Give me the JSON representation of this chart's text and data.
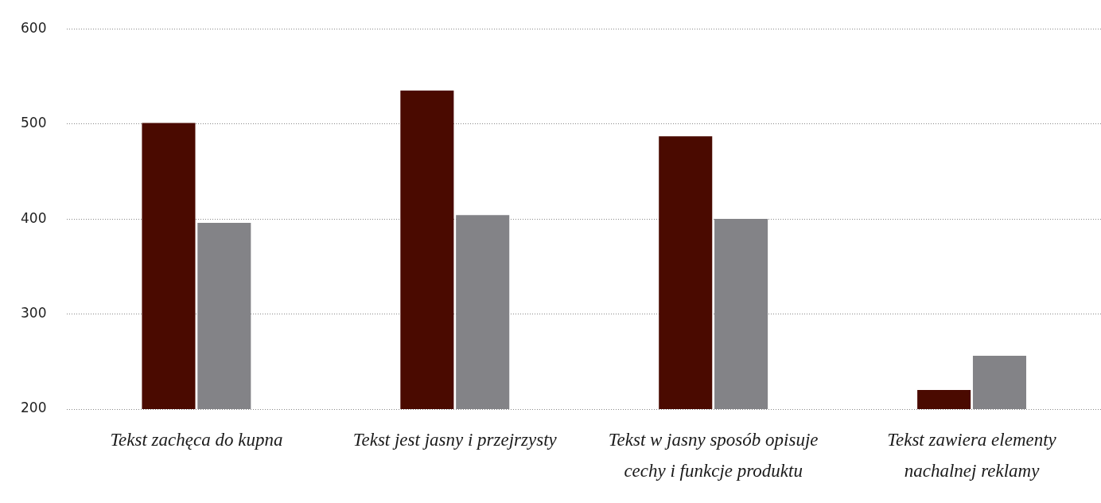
{
  "chart_data": {
    "type": "bar",
    "categories": [
      "Tekst zachęca do kupna",
      "Tekst jest jasny i przejrzysty",
      "Tekst w jasny sposób opisuje cechy i funkcje produktu",
      "Tekst zawiera elementy nachalnej reklamy"
    ],
    "series": [
      {
        "color": "#4a0a00",
        "values": [
          501,
          535,
          487,
          220
        ]
      },
      {
        "color": "#838387",
        "values": [
          396,
          404,
          400,
          256
        ]
      }
    ],
    "ylim": [
      200,
      600
    ],
    "yticks": [
      200,
      300,
      400,
      500,
      600
    ],
    "grid": "y",
    "legend": false
  }
}
